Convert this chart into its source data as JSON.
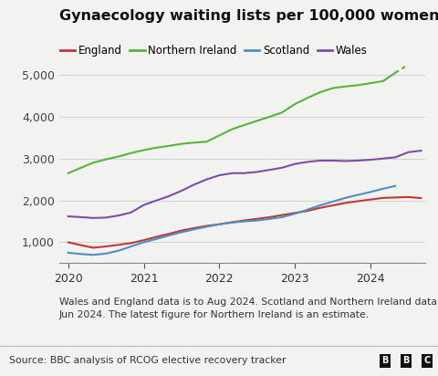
{
  "title": "Gynaecology waiting lists per 100,000 women",
  "background_color": "#f2f2f0",
  "plot_bg": "#f2f2f0",
  "footnote_line1": "Wales and England data is to Aug 2024. Scotland and Northern Ireland data is to",
  "footnote_line2": "Jun 2024. The latest figure for Northern Ireland is an estimate.",
  "source": "Source: BBC analysis of RCOG elective recovery tracker",
  "legend": [
    "England",
    "Northern Ireland",
    "Scotland",
    "Wales"
  ],
  "colors": {
    "England": "#c0373a",
    "Northern Ireland": "#5ab23e",
    "Scotland": "#4f8fc0",
    "Wales": "#7b4fa6"
  },
  "ylim": [
    500,
    5600
  ],
  "yticks": [
    1000,
    2000,
    3000,
    4000,
    5000
  ],
  "england": {
    "x": [
      2020.0,
      2020.17,
      2020.33,
      2020.5,
      2020.67,
      2020.83,
      2021.0,
      2021.17,
      2021.33,
      2021.5,
      2021.67,
      2021.83,
      2022.0,
      2022.17,
      2022.33,
      2022.5,
      2022.67,
      2022.83,
      2023.0,
      2023.17,
      2023.33,
      2023.5,
      2023.67,
      2023.83,
      2024.0,
      2024.17,
      2024.33,
      2024.5,
      2024.67
    ],
    "y": [
      1000,
      930,
      870,
      900,
      940,
      980,
      1050,
      1130,
      1200,
      1280,
      1340,
      1390,
      1430,
      1480,
      1520,
      1560,
      1600,
      1650,
      1700,
      1750,
      1820,
      1880,
      1940,
      1980,
      2020,
      2060,
      2070,
      2080,
      2055
    ]
  },
  "northern_ireland_solid": {
    "x": [
      2020.0,
      2020.17,
      2020.33,
      2020.5,
      2020.67,
      2020.83,
      2021.0,
      2021.17,
      2021.33,
      2021.5,
      2021.67,
      2021.83,
      2022.0,
      2022.17,
      2022.33,
      2022.5,
      2022.67,
      2022.83,
      2023.0,
      2023.17,
      2023.33,
      2023.5,
      2023.67,
      2023.83,
      2024.0,
      2024.17,
      2024.33
    ],
    "y": [
      2650,
      2780,
      2900,
      2980,
      3050,
      3130,
      3200,
      3260,
      3300,
      3350,
      3380,
      3400,
      3550,
      3700,
      3800,
      3900,
      4000,
      4100,
      4300,
      4450,
      4580,
      4680,
      4720,
      4750,
      4800,
      4850,
      5050
    ]
  },
  "northern_ireland_dot": {
    "x": [
      2024.33,
      2024.42,
      2024.5
    ],
    "y": [
      5050,
      5149,
      5248
    ]
  },
  "scotland": {
    "x": [
      2020.0,
      2020.17,
      2020.33,
      2020.5,
      2020.67,
      2020.83,
      2021.0,
      2021.17,
      2021.33,
      2021.5,
      2021.67,
      2021.83,
      2022.0,
      2022.17,
      2022.33,
      2022.5,
      2022.67,
      2022.83,
      2023.0,
      2023.17,
      2023.33,
      2023.5,
      2023.67,
      2023.83,
      2024.0,
      2024.17,
      2024.33
    ],
    "y": [
      750,
      720,
      700,
      730,
      800,
      900,
      1000,
      1080,
      1160,
      1240,
      1310,
      1370,
      1430,
      1470,
      1500,
      1520,
      1560,
      1600,
      1680,
      1780,
      1880,
      1970,
      2060,
      2130,
      2200,
      2280,
      2345
    ]
  },
  "wales": {
    "x": [
      2020.0,
      2020.17,
      2020.33,
      2020.5,
      2020.67,
      2020.83,
      2021.0,
      2021.17,
      2021.33,
      2021.5,
      2021.67,
      2021.83,
      2022.0,
      2022.17,
      2022.33,
      2022.5,
      2022.67,
      2022.83,
      2023.0,
      2023.17,
      2023.33,
      2023.5,
      2023.67,
      2023.83,
      2024.0,
      2024.17,
      2024.33,
      2024.5,
      2024.67
    ],
    "y": [
      1620,
      1600,
      1580,
      1590,
      1640,
      1710,
      1890,
      2000,
      2100,
      2230,
      2380,
      2500,
      2600,
      2650,
      2650,
      2680,
      2730,
      2780,
      2870,
      2920,
      2950,
      2950,
      2940,
      2950,
      2970,
      3000,
      3030,
      3150,
      3187
    ]
  }
}
